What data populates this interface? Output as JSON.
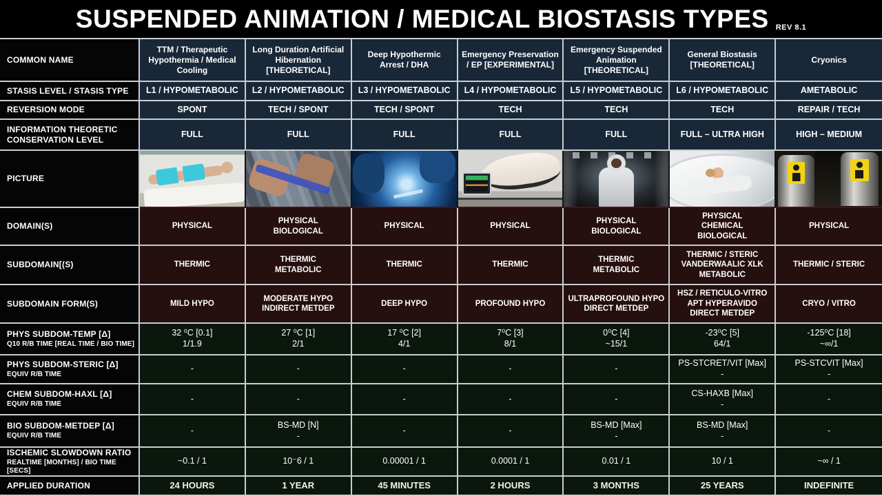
{
  "title": {
    "text": "SUSPENDED ANIMATION / MEDICAL BIOSTASIS TYPES",
    "rev": "REV 8.1"
  },
  "colors": {
    "background": "#000000",
    "header_navy": "#182838",
    "domain_maroon": "#260f0f",
    "metrics_green": "#0b170d",
    "grid_line": "#c9ced1",
    "text": "#ffffff"
  },
  "pictures": [
    "photo-ttm-cooling-patient",
    "photo-artificial-hibernation-pods",
    "photo-deep-hypothermic-surgery",
    "photo-emergency-preservation-pod",
    "photo-suspended-animation-capsule",
    "photo-general-biostasis-pod",
    "photo-cryonics-dewars"
  ],
  "table": {
    "rows": [
      {
        "key": "common-name",
        "label": "COMMON NAME",
        "values": [
          "TTM / Therapeutic Hypothermia / Medical Cooling",
          "Long Duration Artificial Hibernation [THEORETICAL]",
          "Deep Hypothermic Arrest / DHA",
          "Emergency Preservation / EP [EXPERIMENTAL]",
          "Emergency Suspended Animation [THEORETICAL]",
          "General Biostasis [THEORETICAL]",
          "Cryonics"
        ]
      },
      {
        "key": "stasis",
        "label": "STASIS LEVEL / STASIS TYPE",
        "values": [
          "L1 / HYPOMETABOLIC",
          "L2 / HYPOMETABOLIC",
          "L3 / HYPOMETABOLIC",
          "L4 / HYPOMETABOLIC",
          "L5 / HYPOMETABOLIC",
          "L6 / HYPOMETABOLIC",
          "AMETABOLIC"
        ]
      },
      {
        "key": "reversion",
        "label": "REVERSION MODE",
        "values": [
          "SPONT",
          "TECH / SPONT",
          "TECH / SPONT",
          "TECH",
          "TECH",
          "TECH",
          "REPAIR / TECH"
        ]
      },
      {
        "key": "info",
        "label": "INFORMATION THEORETIC CONSERVATION LEVEL",
        "values": [
          "FULL",
          "FULL",
          "FULL",
          "FULL",
          "FULL",
          "FULL – ULTRA HIGH",
          "HIGH – MEDIUM"
        ]
      },
      {
        "key": "picture",
        "label": "PICTURE",
        "values": [
          "",
          "",
          "",
          "",
          "",
          "",
          ""
        ]
      },
      {
        "key": "domains",
        "label": "DOMAIN(S)",
        "values": [
          "PHYSICAL",
          "PHYSICAL\nBIOLOGICAL",
          "PHYSICAL",
          "PHYSICAL",
          "PHYSICAL\nBIOLOGICAL",
          "PHYSICAL\nCHEMICAL\nBIOLOGICAL",
          "PHYSICAL"
        ]
      },
      {
        "key": "subdomains",
        "label": "SUBDOMAIN[(S)",
        "values": [
          "THERMIC",
          "THERMIC\nMETABOLIC",
          "THERMIC",
          "THERMIC",
          "THERMIC\nMETABOLIC",
          "THERMIC / STERIC\nVANDERWAALIC XLK\nMETABOLIC",
          "THERMIC / STERIC"
        ]
      },
      {
        "key": "subdomain-forms",
        "label": "SUBDOMAIN  FORM(S)",
        "values": [
          "MILD HYPO",
          "MODERATE HYPO\nINDIRECT METDEP",
          "DEEP HYPO",
          "PROFOUND HYPO",
          "ULTRAPROFOUND HYPO\nDIRECT METDEP",
          "HSZ / RETICULO-VITRO\nAPT HYPERAVIDO\nDIRECT METDEP",
          "CRYO / VITRO"
        ]
      },
      {
        "key": "phys-temp",
        "label": "PHYS SUBDOM-TEMP [Δ]",
        "sublabel": "Q10 R/B TIME [REAL TIME / BIO TIME]",
        "values": [
          "32 ⁰C [0.1]\n1/1.9",
          "27 ⁰C [1]\n2/1",
          "17 ⁰C  [2]\n4/1",
          "7⁰C [3]\n8/1",
          "0⁰C [4]\n~15/1",
          "-23⁰C [5]\n64/1",
          "-125⁰C [18]\n~∞/1"
        ]
      },
      {
        "key": "phys-steric",
        "label": "PHYS SUBDOM-STERIC [Δ]",
        "sublabel": "EQUIV R/B TIME",
        "values": [
          "-",
          "-",
          "-",
          "-",
          "-",
          "PS-STCRET/VIT  [Max]\n-",
          "PS-STCVIT  [Max]\n-"
        ]
      },
      {
        "key": "chem-haxl",
        "label": "CHEM SUBDOM-HAXL [Δ]",
        "sublabel": "EQUIV R/B TIME",
        "values": [
          "-",
          "-",
          "-",
          "-",
          "-",
          "CS-HAXB  [Max]\n-",
          "-"
        ]
      },
      {
        "key": "bio-metdep",
        "label": "BIO SUBDOM-METDEP [Δ]",
        "sublabel": "EQUIV R/B TIME",
        "values": [
          "-",
          "BS-MD [N]\n-",
          "-",
          "-",
          "BS-MD [Max]\n-",
          "BS-MD [Max]\n-",
          "-"
        ]
      },
      {
        "key": "ischemic",
        "label": "ISCHEMIC  SLOWDOWN  RATIO",
        "sublabel": "REALTIME [MONTHS] / BIO TIME [SECS]",
        "values": [
          "~0.1 / 1",
          "10⁻6 / 1",
          "0.00001  / 1",
          "0.0001  / 1",
          "0.01  / 1",
          "10 / 1",
          "~∞ / 1"
        ]
      },
      {
        "key": "applied",
        "label": "APPLIED  DURATION",
        "values": [
          "24 HOURS",
          "1 YEAR",
          "45 MINUTES",
          "2 HOURS",
          "3 MONTHS",
          "25 YEARS",
          "INDEFINITE"
        ]
      }
    ]
  }
}
